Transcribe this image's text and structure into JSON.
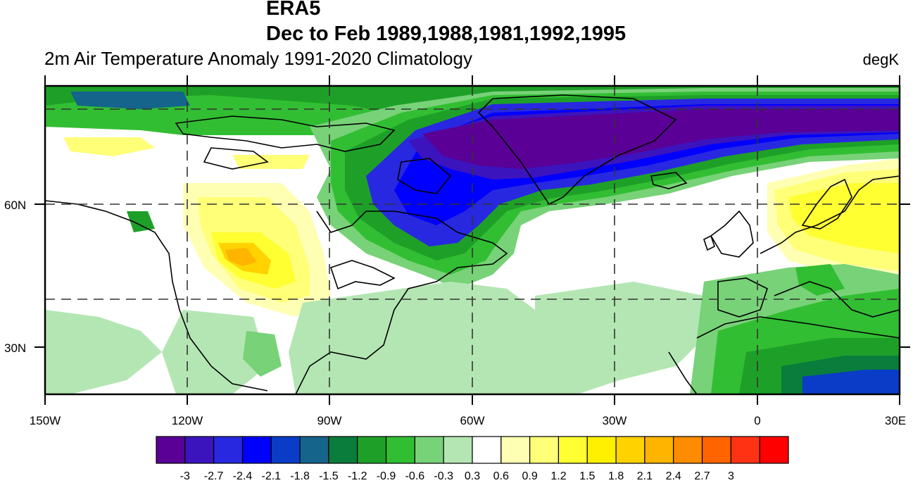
{
  "header": {
    "model": "ERA5",
    "period": "Dec to Feb 1989,1988,1981,1992,1995",
    "variable": "2m Air Temperature Anomaly  1991-2020 Climatology",
    "units": "degK"
  },
  "map": {
    "lon_labels": [
      "150W",
      "120W",
      "90W",
      "60W",
      "30W",
      "0",
      "30E"
    ],
    "lat_labels": [
      "60N",
      "30N"
    ],
    "extent": {
      "lon": [
        -150,
        30
      ],
      "lat": [
        20,
        85
      ]
    }
  },
  "colorbar": {
    "labels": [
      "-3",
      "-2.7",
      "-2.4",
      "-2.1",
      "-1.8",
      "-1.5",
      "-1.2",
      "-0.9",
      "-0.6",
      "-0.3",
      "0.3",
      "0.6",
      "0.9",
      "1.2",
      "1.5",
      "1.8",
      "2.1",
      "2.4",
      "2.7",
      "3"
    ],
    "colors": [
      "#5a0096",
      "#3c14be",
      "#2828e1",
      "#0000ff",
      "#0a3cc8",
      "#14648c",
      "#0a7d3c",
      "#1ea028",
      "#32be32",
      "#78d278",
      "#b4e6b4",
      "#ffffff",
      "#ffffb4",
      "#ffff78",
      "#ffff32",
      "#fff000",
      "#ffd200",
      "#ffb400",
      "#ff8c00",
      "#ff6400",
      "#ff3214",
      "#ff0000"
    ]
  }
}
